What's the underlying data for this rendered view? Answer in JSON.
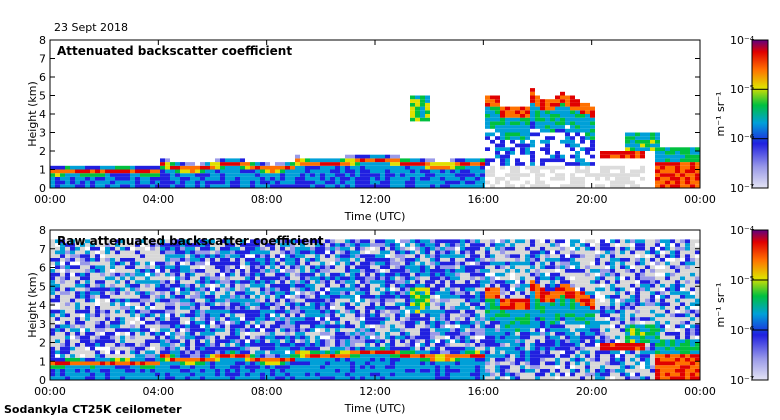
{
  "date": "23 Sept 2018",
  "instrument": "Sodankyla CT25K ceilometer",
  "chart_data": [
    {
      "type": "heatmap",
      "title": "Attenuated backscatter coefficient",
      "xlabel": "Time (UTC)",
      "ylabel": "Height (km)",
      "xticks": [
        "00:00",
        "04:00",
        "08:00",
        "12:00",
        "16:00",
        "20:00",
        "00:00"
      ],
      "yticks": [
        "0",
        "1",
        "2",
        "3",
        "4",
        "5",
        "6",
        "7",
        "8"
      ],
      "ylim": [
        0,
        8
      ],
      "colorbar": {
        "label": "m⁻¹ sr⁻¹",
        "ticks": [
          "10⁻⁷",
          "10⁻⁶",
          "10⁻⁵",
          "10⁻⁴"
        ]
      },
      "features": [
        {
          "name": "boundary layer",
          "time_h": [
            0,
            16
          ],
          "height_km": [
            0.6,
            1.6
          ]
        },
        {
          "name": "elevated layer",
          "time_h": [
            13.3,
            14.1
          ],
          "height_km": [
            3.6,
            4.9
          ]
        },
        {
          "name": "cloud",
          "time_h": [
            15.9,
            21.5
          ],
          "height_km": [
            3.0,
            6.2
          ]
        },
        {
          "name": "low cloud",
          "time_h": [
            20.4,
            24
          ],
          "height_km": [
            0,
            3.0
          ]
        }
      ]
    },
    {
      "type": "heatmap",
      "title": "Raw attenuated backscatter coefficient",
      "xlabel": "Time (UTC)",
      "ylabel": "Height (km)",
      "xticks": [
        "00:00",
        "04:00",
        "08:00",
        "12:00",
        "16:00",
        "20:00",
        "00:00"
      ],
      "yticks": [
        "0",
        "1",
        "2",
        "3",
        "4",
        "5",
        "6",
        "7",
        "8"
      ],
      "ylim": [
        0,
        8
      ],
      "colorbar": {
        "label": "m⁻¹ sr⁻¹",
        "ticks": [
          "10⁻⁷",
          "10⁻⁶",
          "10⁻⁵",
          "10⁻⁴"
        ]
      },
      "features": [
        {
          "name": "noise",
          "time_h": [
            0,
            16
          ],
          "height_km": [
            0,
            7.5
          ]
        },
        {
          "name": "boundary layer",
          "time_h": [
            0,
            16
          ],
          "height_km": [
            0.6,
            1.6
          ]
        },
        {
          "name": "cloud",
          "time_h": [
            15.9,
            21.5
          ],
          "height_km": [
            3.0,
            6.2
          ]
        },
        {
          "name": "low cloud",
          "time_h": [
            20.4,
            24
          ],
          "height_km": [
            0,
            3.0
          ]
        }
      ]
    }
  ]
}
